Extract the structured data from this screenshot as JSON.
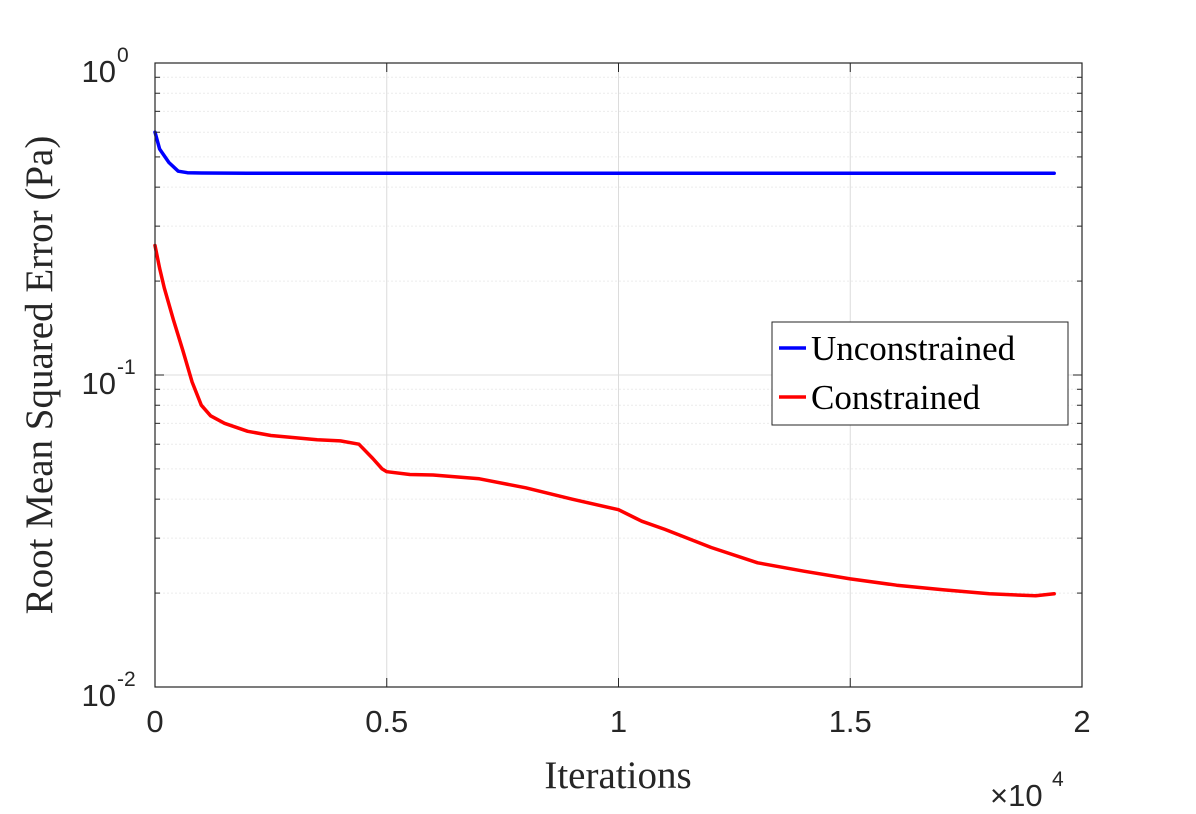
{
  "chart_data": {
    "type": "line",
    "title": "",
    "xlabel": "Iterations",
    "ylabel": "Root Mean Squared Error (Pa)",
    "x_multiplier": {
      "base": "×10",
      "exp": "4"
    },
    "xlim": [
      0,
      2
    ],
    "ylim": [
      0.01,
      1
    ],
    "yscale": "log",
    "grid": true,
    "legend_position": "right",
    "x_ticks": [
      {
        "value": 0,
        "label": "0"
      },
      {
        "value": 0.5,
        "label": "0.5"
      },
      {
        "value": 1,
        "label": "1"
      },
      {
        "value": 1.5,
        "label": "1.5"
      },
      {
        "value": 2,
        "label": "2"
      }
    ],
    "y_ticks": [
      {
        "value": 0.01,
        "base": "10",
        "exp": "-2"
      },
      {
        "value": 0.1,
        "base": "10",
        "exp": "-1"
      },
      {
        "value": 1,
        "base": "10",
        "exp": "0"
      }
    ],
    "series": [
      {
        "name": "Unconstrained",
        "color": "#0000ff",
        "x": [
          0,
          0.01,
          0.03,
          0.05,
          0.07,
          0.1,
          0.2,
          0.5,
          1.0,
          1.5,
          1.94
        ],
        "y": [
          0.6,
          0.53,
          0.48,
          0.45,
          0.445,
          0.444,
          0.443,
          0.443,
          0.443,
          0.443,
          0.443
        ]
      },
      {
        "name": "Constrained",
        "color": "#ff0000",
        "x": [
          0,
          0.01,
          0.02,
          0.04,
          0.06,
          0.08,
          0.1,
          0.12,
          0.15,
          0.2,
          0.25,
          0.3,
          0.35,
          0.4,
          0.44,
          0.47,
          0.49,
          0.5,
          0.55,
          0.6,
          0.7,
          0.8,
          0.9,
          1.0,
          1.05,
          1.1,
          1.2,
          1.3,
          1.4,
          1.5,
          1.6,
          1.7,
          1.8,
          1.9,
          1.94
        ],
        "y": [
          0.26,
          0.22,
          0.19,
          0.15,
          0.12,
          0.095,
          0.08,
          0.074,
          0.07,
          0.066,
          0.064,
          0.063,
          0.062,
          0.0615,
          0.06,
          0.054,
          0.05,
          0.049,
          0.048,
          0.0478,
          0.0465,
          0.0435,
          0.04,
          0.037,
          0.034,
          0.032,
          0.028,
          0.025,
          0.0235,
          0.0222,
          0.0212,
          0.0205,
          0.0199,
          0.0196,
          0.0199
        ]
      }
    ]
  }
}
